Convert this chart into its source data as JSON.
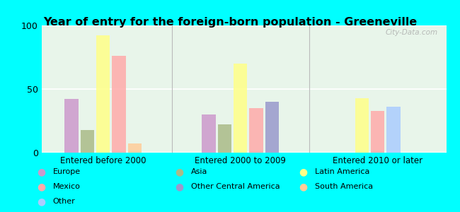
{
  "title": "Year of entry for the foreign-born population - Greeneville",
  "groups": [
    "Entered before 2000",
    "Entered 2000 to 2009",
    "Entered 2010 or later"
  ],
  "colors": {
    "Europe": "#cc99cc",
    "Asia": "#aabb88",
    "Latin America": "#ffff88",
    "Mexico": "#ffaaaa",
    "Other Central America": "#9999cc",
    "South America": "#ffcc99",
    "Other": "#aaccff"
  },
  "values": {
    "Entered before 2000": [
      [
        "Europe",
        42
      ],
      [
        "Asia",
        18
      ],
      [
        "Latin America",
        92
      ],
      [
        "Mexico",
        76
      ],
      [
        "South America",
        7
      ]
    ],
    "Entered 2000 to 2009": [
      [
        "Europe",
        30
      ],
      [
        "Asia",
        22
      ],
      [
        "Latin America",
        70
      ],
      [
        "Mexico",
        35
      ],
      [
        "Other Central America",
        40
      ]
    ],
    "Entered 2010 or later": [
      [
        "Latin America",
        43
      ],
      [
        "Mexico",
        33
      ],
      [
        "Other",
        36
      ]
    ]
  },
  "ylim": [
    0,
    100
  ],
  "yticks": [
    0,
    50,
    100
  ],
  "background_color": "#00ffff",
  "plot_bg": "#e8f5ea",
  "watermark": "City-Data.com",
  "legend_order": [
    [
      "Europe",
      "#cc99cc"
    ],
    [
      "Asia",
      "#aabb88"
    ],
    [
      "Latin America",
      "#ffff88"
    ],
    [
      "Mexico",
      "#ffaaaa"
    ],
    [
      "Other Central America",
      "#9999cc"
    ],
    [
      "South America",
      "#ffcc99"
    ],
    [
      "Other",
      "#aaccff"
    ]
  ]
}
